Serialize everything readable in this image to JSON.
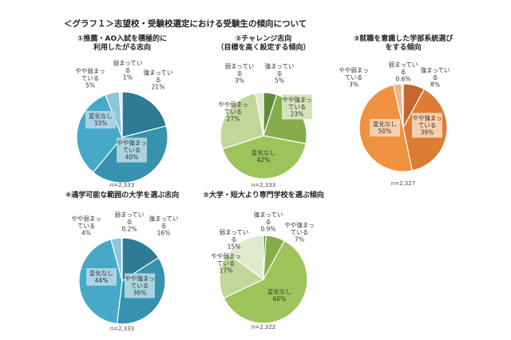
{
  "title": "＜グラフ１＞志望校・受験校選定における受験生の傾向について",
  "chart_data": [
    {
      "type": "pie",
      "title": [
        "①推薦・AO入試を積極的に",
        "利用したがる志向"
      ],
      "n": "n=2,333",
      "palette": "blue",
      "categories": [
        "強まっている",
        "やや強まっている",
        "変化なし",
        "やや弱まっている",
        "弱まっている"
      ],
      "values": [
        21,
        40,
        33,
        5,
        1
      ],
      "value_labels": [
        "21%",
        "40%",
        "33%",
        "5%",
        "1%"
      ]
    },
    {
      "type": "pie",
      "title": [
        "②チャレンジ志向",
        "（目標を高く設定する傾向）"
      ],
      "n": "n=2,333",
      "palette": "green",
      "categories": [
        "強まっている",
        "やや強まっている",
        "変化なし",
        "やや弱まっている",
        "弱まっている"
      ],
      "values": [
        5,
        23,
        42,
        27,
        3
      ],
      "value_labels": [
        "5%",
        "23%",
        "42%",
        "27%",
        "3%"
      ]
    },
    {
      "type": "pie",
      "title": [
        "③就職を意識した学部系統選び",
        "をする傾向"
      ],
      "n": "n=2,327",
      "palette": "orange",
      "categories": [
        "強まっている",
        "やや強まっている",
        "変化なし",
        "やや弱まっている",
        "弱まっている"
      ],
      "values": [
        8,
        39,
        50,
        3,
        0.6
      ],
      "value_labels": [
        "8%",
        "39%",
        "50%",
        "3%",
        "0.6%"
      ]
    },
    {
      "type": "pie",
      "title": [
        "④通学可能な範囲の大学を選ぶ志向"
      ],
      "n": "n=2,333",
      "palette": "blue",
      "categories": [
        "強まっている",
        "やや強まっている",
        "変化なし",
        "やや弱まっている",
        "弱まっている"
      ],
      "values": [
        16,
        36,
        44,
        4,
        0.2
      ],
      "value_labels": [
        "16%",
        "36%",
        "44%",
        "4%",
        "0.2%"
      ]
    },
    {
      "type": "pie",
      "title": [
        "⑤大学・短大より専門学校を選ぶ傾向"
      ],
      "n": "n=2,322",
      "palette": "green",
      "categories": [
        "強まっている",
        "やや強まっている",
        "変化なし",
        "やや弱まっている",
        "弱まっている"
      ],
      "values": [
        0.9,
        7,
        60,
        17,
        15
      ],
      "value_labels": [
        "0.9%",
        "7%",
        "60%",
        "17%",
        "15%"
      ]
    }
  ],
  "colors": {
    "blue": [
      "#2d7b94",
      "#3692ae",
      "#46a9c8",
      "#8cc5d7",
      "#d6ebf1"
    ],
    "green": [
      "#5e8d39",
      "#86ad4b",
      "#9dc45b",
      "#c1d79a",
      "#dfe9cc"
    ],
    "orange": [
      "#c7672b",
      "#dc7d33",
      "#f0923f",
      "#f5b48c",
      "#fbdac5"
    ]
  }
}
